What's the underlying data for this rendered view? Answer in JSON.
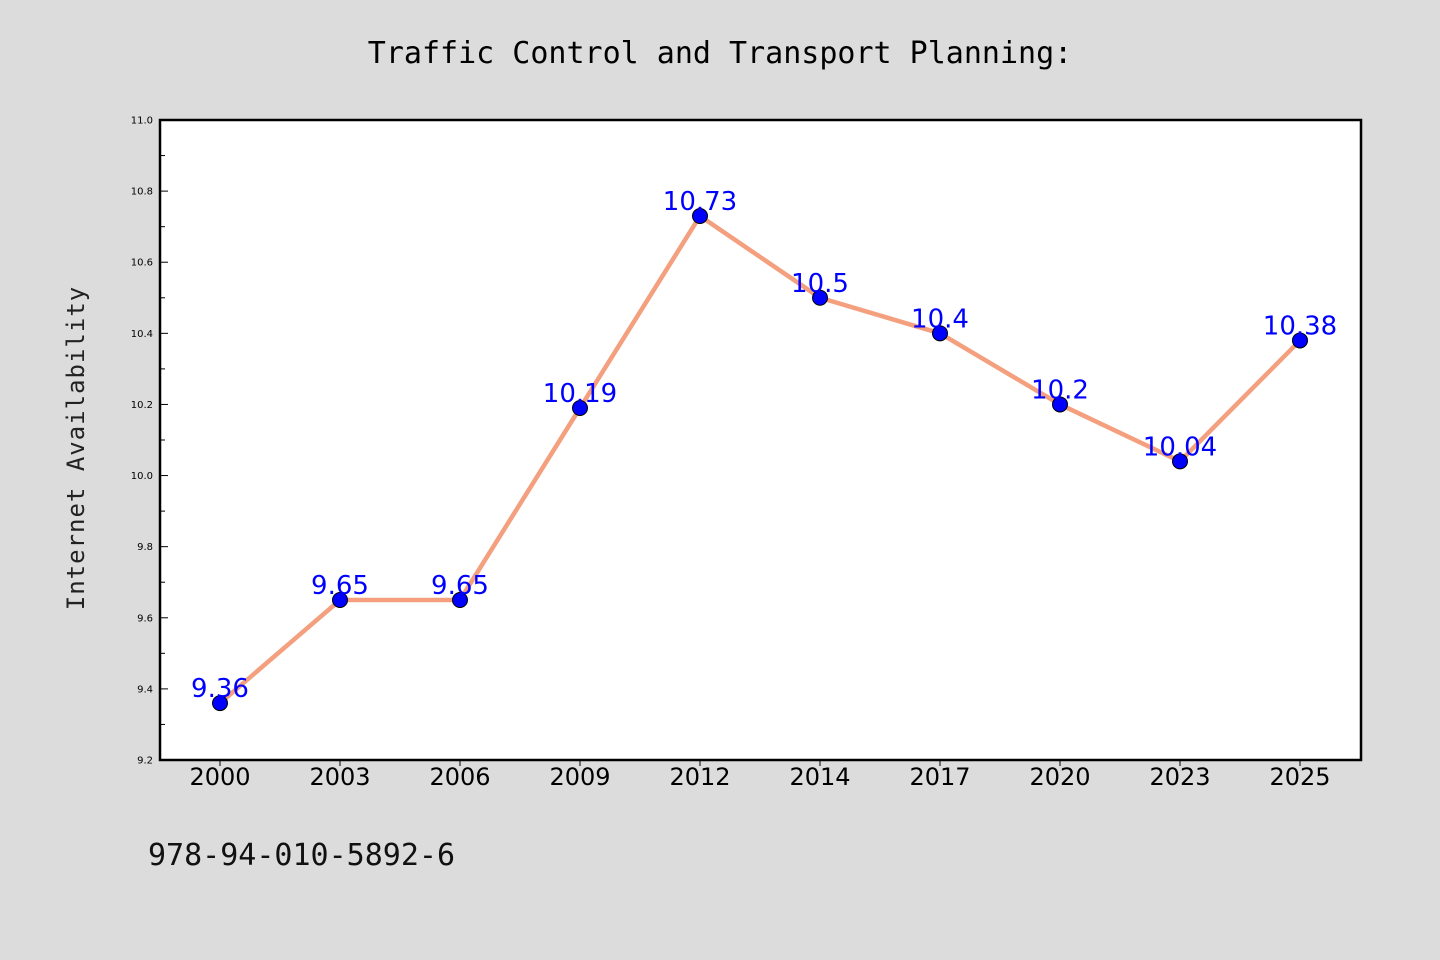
{
  "footer": {
    "text": "978-94-010-5892-6"
  },
  "chart_data": {
    "type": "line",
    "title": "Traffic Control and Transport Planning:",
    "xlabel": "",
    "ylabel": "Internet Availability",
    "categories": [
      "2000",
      "2003",
      "2006",
      "2009",
      "2012",
      "2014",
      "2017",
      "2020",
      "2023",
      "2025"
    ],
    "series": [
      {
        "values": [
          9.36,
          9.65,
          9.65,
          10.19,
          10.73,
          10.5,
          10.4,
          10.2,
          10.04,
          10.38
        ],
        "line_color": "#f4a07f",
        "marker_color": "#0000ff"
      }
    ],
    "data_labels": [
      "9.36",
      "9.65",
      "9.65",
      "10.19",
      "10.73",
      "10.5",
      "10.4",
      "10.2",
      "10.04",
      "10.38"
    ],
    "ylim": [
      9.2,
      11.0
    ],
    "yticks": [
      "9.2",
      "9.4",
      "9.6",
      "9.8",
      "10.0",
      "10.2",
      "10.4",
      "10.6",
      "10.8",
      "11.0"
    ],
    "grid": false,
    "legend": "none",
    "colors": {
      "background": "#dcdcdc",
      "plot_background": "#ffffff",
      "label": "#0000ff"
    }
  }
}
